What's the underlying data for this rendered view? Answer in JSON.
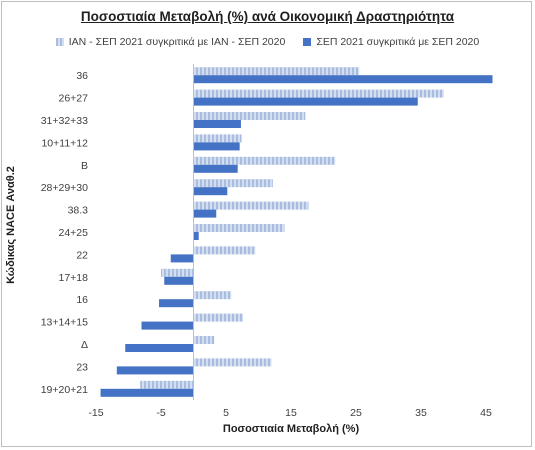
{
  "chart_data": {
    "type": "bar",
    "orientation": "horizontal",
    "title": "Ποσοστιαία Μεταβολή (%) ανά Οικονομική Δραστηριότητα",
    "xlabel": "Ποσοστιαία Μεταβολή (%)",
    "ylabel": "Κώδικας NACE Αναθ.2",
    "categories": [
      "36",
      "26+27",
      "31+32+33",
      "10+11+12",
      "B",
      "28+29+30",
      "38.3",
      "24+25",
      "22",
      "17+18",
      "16",
      "13+14+15",
      "Δ",
      "23",
      "19+20+21"
    ],
    "series": [
      {
        "name": "ΙΑΝ - ΣΕΠ 2021 συγκριτικά με ΙΑΝ - ΣΕΠ 2020",
        "color": "#a9bde0",
        "values": [
          25.5,
          38.5,
          17.2,
          7.4,
          21.8,
          12.2,
          17.7,
          14.0,
          9.5,
          -5.0,
          5.8,
          7.6,
          3.2,
          12.0,
          -8.2
        ]
      },
      {
        "name": "ΣΕΠ 2021 συγκριτικά με ΣΕΠ 2020",
        "color": "#4472c4",
        "values": [
          46.0,
          34.5,
          7.3,
          7.1,
          6.8,
          5.2,
          3.5,
          0.8,
          -3.5,
          -4.5,
          -5.3,
          -8.0,
          -10.5,
          -11.8,
          -14.3
        ]
      }
    ],
    "xlim": [
      -15,
      45
    ],
    "xticks": [
      "-15",
      "-5",
      "5",
      "15",
      "25",
      "35",
      "45"
    ],
    "xtick_values": [
      -15,
      -5,
      5,
      15,
      25,
      35,
      45
    ],
    "grid": false,
    "legend": "top"
  }
}
